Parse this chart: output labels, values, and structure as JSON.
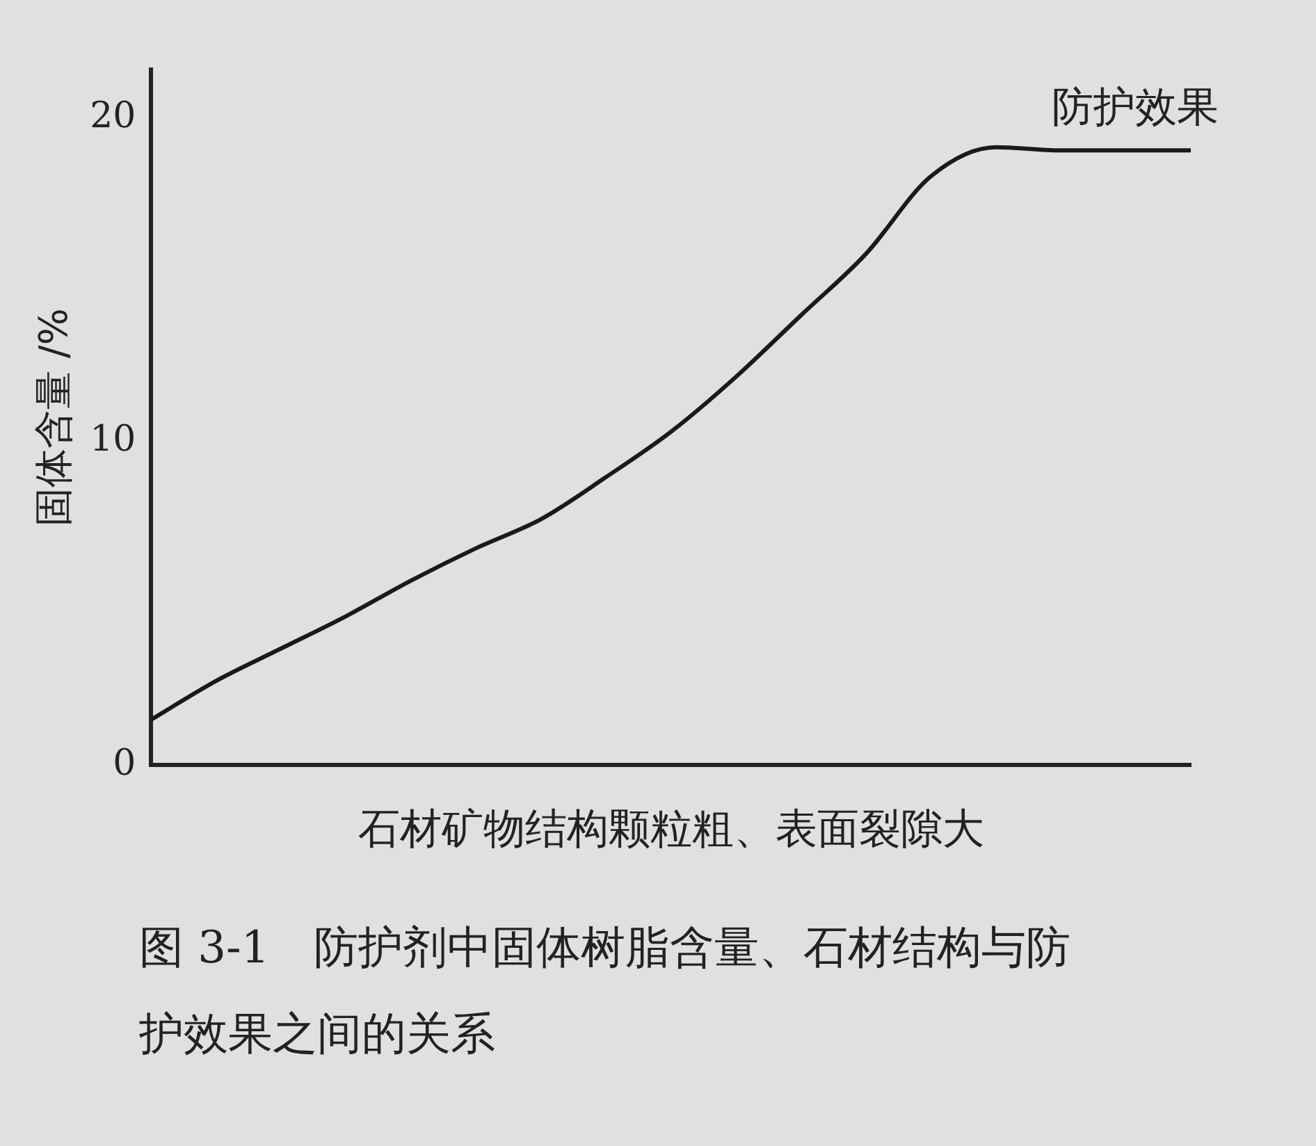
{
  "chart_data": {
    "type": "line",
    "title": "图 3-1　防护剂中固体树脂含量、石材结构与防护效果之间的关系",
    "xlabel": "石材矿物结构颗粒粗、表面裂隙大",
    "ylabel": "固体含量 /%",
    "annotations": [
      "防护效果"
    ],
    "categories": [
      null,
      null,
      null,
      null,
      null,
      null,
      null,
      null,
      null,
      null,
      null,
      null,
      null,
      null,
      null,
      null,
      null
    ],
    "series": [
      {
        "color": "#1a1a1a",
        "values": [
          1.4,
          2.6,
          3.6,
          4.6,
          5.7,
          6.7,
          7.6,
          8.9,
          10.3,
          12.0,
          13.9,
          15.8,
          18.2,
          19.1,
          19,
          19,
          19
        ]
      }
    ],
    "ylim": [
      0,
      21.5
    ],
    "yticks": [
      0,
      10,
      20
    ],
    "grid": false,
    "legend": false,
    "marker": "none",
    "line_style": "solid",
    "tick_labels": "y"
  }
}
